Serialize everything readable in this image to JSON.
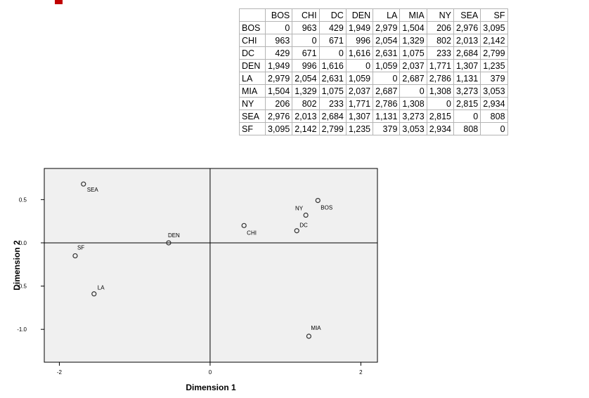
{
  "table": {
    "corner": "",
    "columns": [
      "BOS",
      "CHI",
      "DC",
      "DEN",
      "LA",
      "MIA",
      "NY",
      "SEA",
      "SF"
    ],
    "rows": [
      {
        "label": "BOS",
        "cells": [
          "0",
          "963",
          "429",
          "1,949",
          "2,979",
          "1,504",
          "206",
          "2,976",
          "3,095"
        ]
      },
      {
        "label": "CHI",
        "cells": [
          "963",
          "0",
          "671",
          "996",
          "2,054",
          "1,329",
          "802",
          "2,013",
          "2,142"
        ]
      },
      {
        "label": "DC",
        "cells": [
          "429",
          "671",
          "0",
          "1,616",
          "2,631",
          "1,075",
          "233",
          "2,684",
          "2,799"
        ]
      },
      {
        "label": "DEN",
        "cells": [
          "1,949",
          "996",
          "1,616",
          "0",
          "1,059",
          "2,037",
          "1,771",
          "1,307",
          "1,235"
        ]
      },
      {
        "label": "LA",
        "cells": [
          "2,979",
          "2,054",
          "2,631",
          "1,059",
          "0",
          "2,687",
          "2,786",
          "1,131",
          "379"
        ]
      },
      {
        "label": "MIA",
        "cells": [
          "1,504",
          "1,329",
          "1,075",
          "2,037",
          "2,687",
          "0",
          "1,308",
          "3,273",
          "3,053"
        ]
      },
      {
        "label": "NY",
        "cells": [
          "206",
          "802",
          "233",
          "1,771",
          "2,786",
          "1,308",
          "0",
          "2,815",
          "2,934"
        ]
      },
      {
        "label": "SEA",
        "cells": [
          "2,976",
          "2,013",
          "2,684",
          "1,307",
          "1,131",
          "3,273",
          "2,815",
          "0",
          "808"
        ]
      },
      {
        "label": "SF",
        "cells": [
          "3,095",
          "2,142",
          "2,799",
          "1,235",
          "379",
          "3,053",
          "2,934",
          "808",
          "0"
        ]
      }
    ]
  },
  "chart_data": {
    "type": "scatter",
    "title": "",
    "xlabel": "Dimension 1",
    "ylabel": "Dimension 2",
    "xlim": [
      -2.2,
      2.22
    ],
    "ylim": [
      -1.38,
      0.86
    ],
    "xticks": [
      -2,
      0,
      2
    ],
    "xtick_labels": [
      "-2",
      "0",
      "2"
    ],
    "yticks": [
      0.5,
      0.0,
      -0.5,
      -1.0
    ],
    "ytick_labels": [
      "0.5",
      "0.0",
      "-0.5",
      "-1.0"
    ],
    "reference_lines": {
      "x": 0,
      "y": 0
    },
    "grid": false,
    "legend": "none",
    "colors": {
      "plot_bg": "#f0f0f0",
      "marker": "#333333",
      "axis": "#000000"
    },
    "points": [
      {
        "label": "BOS",
        "x": 1.43,
        "y": 0.49
      },
      {
        "label": "CHI",
        "x": 0.45,
        "y": 0.2
      },
      {
        "label": "DC",
        "x": 1.15,
        "y": 0.14
      },
      {
        "label": "DEN",
        "x": -0.55,
        "y": 0.0
      },
      {
        "label": "LA",
        "x": -1.54,
        "y": -0.59
      },
      {
        "label": "MIA",
        "x": 1.31,
        "y": -1.08
      },
      {
        "label": "NY",
        "x": 1.27,
        "y": 0.32
      },
      {
        "label": "SEA",
        "x": -1.68,
        "y": 0.68
      },
      {
        "label": "SF",
        "x": -1.79,
        "y": -0.15
      }
    ]
  }
}
